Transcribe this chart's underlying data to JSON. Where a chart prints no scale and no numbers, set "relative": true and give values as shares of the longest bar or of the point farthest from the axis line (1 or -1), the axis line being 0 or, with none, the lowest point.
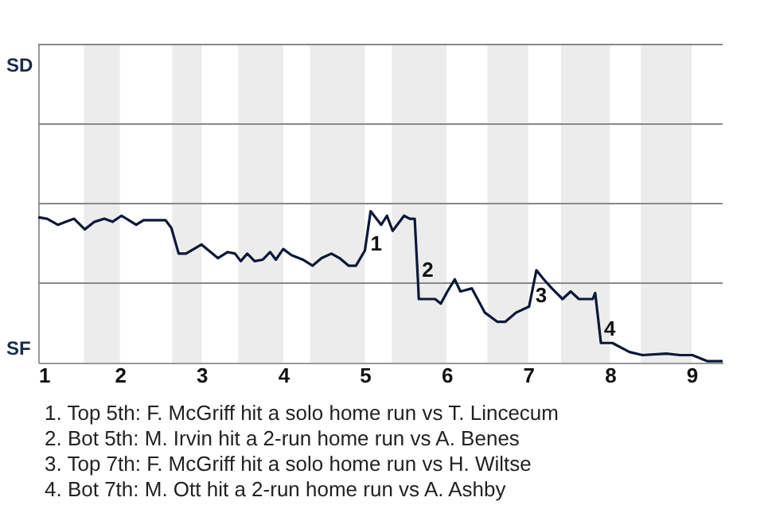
{
  "chart_data": {
    "type": "line",
    "relative": true,
    "x": [
      1,
      1.11,
      1.24,
      1.34,
      1.44,
      1.57,
      1.69,
      1.81,
      1.91,
      2.02,
      2.11,
      2.2,
      2.29,
      2.56,
      2.63,
      2.72,
      2.81,
      3,
      3.2,
      3.32,
      3.41,
      3.48,
      3.56,
      3.65,
      3.75,
      3.84,
      3.91,
      4,
      4.1,
      4.24,
      4.36,
      4.47,
      4.59,
      4.69,
      4.8,
      4.89,
      5,
      5.07,
      5.2,
      5.27,
      5.34,
      5.48,
      5.55,
      5.61,
      5.65,
      5.66,
      5.77,
      5.86,
      5.93,
      6.01,
      6.1,
      6.17,
      6.31,
      6.47,
      6.62,
      6.72,
      6.85,
      7.01,
      7.1,
      7.19,
      7.29,
      7.42,
      7.52,
      7.62,
      7.79,
      7.82,
      7.89,
      8.03,
      8.24,
      8.4,
      8.69,
      8.86,
      9.01,
      9.19,
      9.38
    ],
    "series": [
      {
        "color": "#0b1838",
        "values": [
          0.96,
          0.95,
          0.91,
          0.93,
          0.95,
          0.88,
          0.93,
          0.95,
          0.93,
          0.97,
          0.94,
          0.91,
          0.94,
          0.94,
          0.89,
          0.72,
          0.72,
          0.78,
          0.69,
          0.73,
          0.72,
          0.67,
          0.72,
          0.67,
          0.68,
          0.73,
          0.68,
          0.75,
          0.71,
          0.68,
          0.64,
          0.69,
          0.72,
          0.69,
          0.64,
          0.64,
          0.74,
          1,
          0.91,
          0.97,
          0.87,
          0.97,
          0.95,
          0.95,
          0.54,
          0.42,
          0.42,
          0.42,
          0.39,
          0.47,
          0.55,
          0.47,
          0.49,
          0.33,
          0.27,
          0.27,
          0.33,
          0.37,
          0.61,
          0.55,
          0.49,
          0.42,
          0.47,
          0.42,
          0.42,
          0.46,
          0.13,
          0.13,
          0.07,
          0.05,
          0.06,
          0.05,
          0.05,
          0.01,
          0.01
        ]
      }
    ],
    "xlim": [
      1,
      9.38
    ],
    "xticks": [
      1,
      2,
      3,
      4,
      5,
      6,
      7,
      8,
      9
    ],
    "marker": "none",
    "line_style": "solid",
    "ref_lines": [
      {
        "axis": "y",
        "value": 0.525,
        "color": "#888888"
      },
      {
        "axis": "y",
        "value": 1.05,
        "color": "#888888"
      },
      {
        "axis": "y",
        "value": 1.575,
        "color": "#888888"
      },
      {
        "axis": "y",
        "value": 2.1,
        "color": "#888888"
      }
    ],
    "bands": [
      {
        "axis": "x",
        "from": 1.56,
        "to": 2,
        "color": "#ececec"
      },
      {
        "axis": "x",
        "from": 2.64,
        "to": 3,
        "color": "#ececec"
      },
      {
        "axis": "x",
        "from": 3.45,
        "to": 4,
        "color": "#ececec"
      },
      {
        "axis": "x",
        "from": 4.33,
        "to": 5,
        "color": "#ececec"
      },
      {
        "axis": "x",
        "from": 5.33,
        "to": 6,
        "color": "#ececec"
      },
      {
        "axis": "x",
        "from": 6.5,
        "to": 7,
        "color": "#ececec"
      },
      {
        "axis": "x",
        "from": 7.4,
        "to": 8,
        "color": "#ececec"
      },
      {
        "axis": "x",
        "from": 8.38,
        "to": 9,
        "color": "#ececec"
      }
    ],
    "annotations": [
      {
        "text": "1",
        "x": 5.01,
        "y": 0.78
      },
      {
        "text": "2",
        "x": 5.64,
        "y": 0.61
      },
      {
        "text": "3",
        "x": 7.03,
        "y": 0.44
      },
      {
        "text": "4",
        "x": 7.87,
        "y": 0.22
      },
      "SD",
      "SF",
      "1. Top 5th: F. McGriff hit a solo home run vs T. Lincecum",
      "2. Bot 5th: M. Irvin hit a 2-run home run vs A. Benes",
      "3. Top 7th: F. McGriff hit a solo home run vs H. Wiltse",
      "4. Bot 7th: M. Ott hit a 2-run home run vs A. Ashby"
    ]
  }
}
